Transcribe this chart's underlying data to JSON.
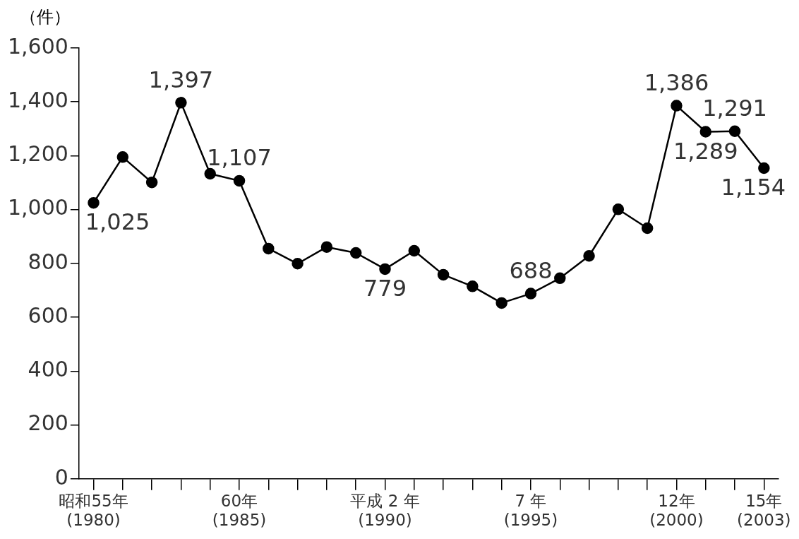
{
  "chart_data": {
    "type": "line",
    "ylabel": "（件）",
    "categories": [
      "昭和55年\n(1980)",
      null,
      null,
      null,
      null,
      "60年\n(1985)",
      null,
      null,
      null,
      null,
      "平成 2 年\n(1990)",
      null,
      null,
      null,
      null,
      "7 年\n(1995)",
      null,
      null,
      null,
      null,
      "12年\n(2000)",
      null,
      null,
      "15年\n(2003)"
    ],
    "series": [
      {
        "color": "#000000",
        "values": [
          1025,
          1195,
          1101,
          1397,
          1133,
          1107,
          855,
          799,
          861,
          839,
          779,
          847,
          758,
          715,
          653,
          688,
          745,
          828,
          1001,
          931,
          1386,
          1289,
          1291,
          1154
        ],
        "value_labels": [
          "1,025",
          null,
          null,
          "1,397",
          null,
          "1,107",
          null,
          null,
          null,
          null,
          "779",
          null,
          null,
          null,
          null,
          "688",
          null,
          null,
          null,
          null,
          "1,386",
          "1,289",
          "1,291",
          "1,154"
        ]
      }
    ],
    "ylim": [
      0,
      1600
    ],
    "yticks": [
      0,
      {
        "value": 200,
        "label": "200"
      },
      {
        "value": 400,
        "label": "400"
      },
      {
        "value": 600,
        "label": "600"
      },
      {
        "value": 800,
        "label": "800"
      },
      {
        "value": 1000,
        "label": "1,000"
      },
      {
        "value": 1200,
        "label": "1,200"
      },
      {
        "value": 1400,
        "label": "1,400"
      },
      {
        "value": 1600,
        "label": "1,600"
      }
    ],
    "grid": false,
    "legend": false,
    "marker": "circle",
    "line_style": "solid"
  }
}
